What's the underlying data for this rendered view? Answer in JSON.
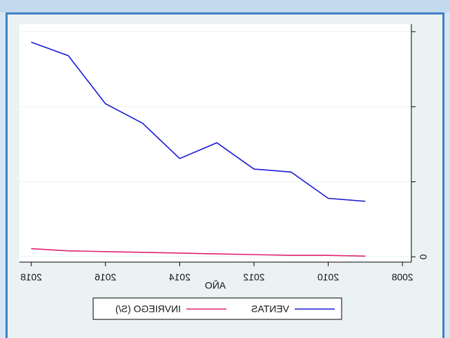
{
  "chart_data": {
    "type": "line",
    "x": [
      2018,
      2017,
      2016,
      2015,
      2014,
      2013,
      2012,
      2011,
      2010,
      2009
    ],
    "series": [
      {
        "name": "VENTAS",
        "color": "#1a1ad6",
        "values": [
          286,
          268,
          204,
          178,
          131,
          152,
          117,
          113,
          78,
          74
        ]
      },
      {
        "name": "INVRIEGO (S/)",
        "color": "#e0206e",
        "values": [
          11,
          8,
          7,
          6,
          5,
          4,
          3,
          2,
          2,
          1
        ]
      }
    ],
    "xlabel": "AÑO",
    "xlim": [
      2007.76,
      2018.32
    ],
    "xticks": [
      2008,
      2010,
      2012,
      2014,
      2016,
      2018
    ],
    "ylim": [
      -7,
      310
    ],
    "yticks": [
      0
    ],
    "minor_yticks": [
      100,
      200,
      300
    ],
    "grid": true,
    "mirrored": true,
    "legend": "bottom"
  }
}
